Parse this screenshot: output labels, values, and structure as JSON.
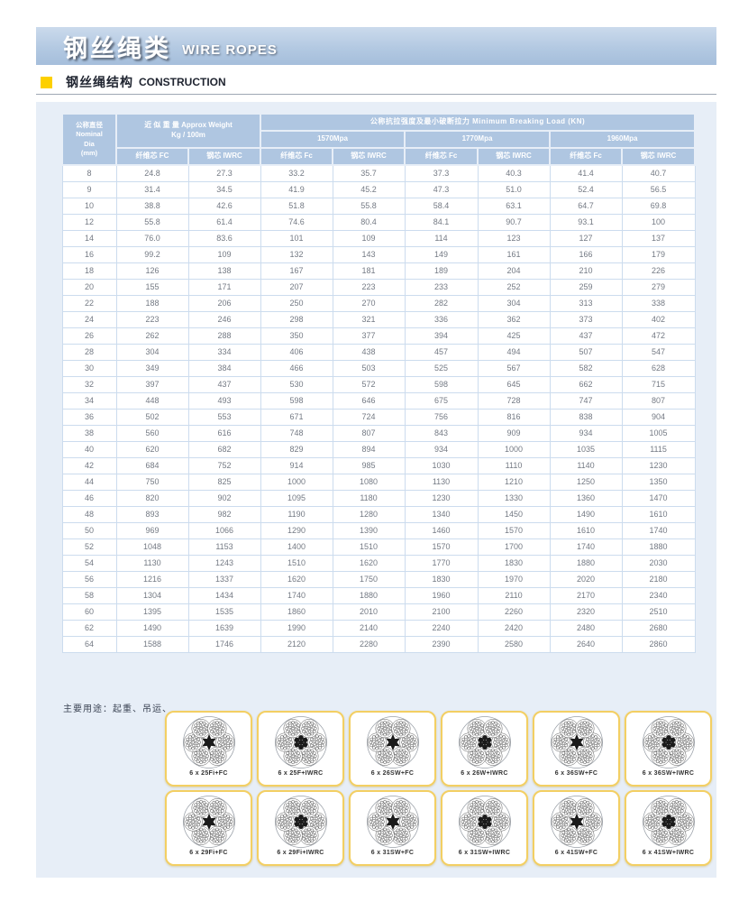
{
  "banner": {
    "title_zh": "钢丝绳类",
    "title_en": "WIRE ROPES"
  },
  "section": {
    "title_zh": "钢丝绳结构",
    "title_en": "CONSTRUCTION"
  },
  "note": "主要用途：起重、吊运、",
  "table": {
    "dia_header": [
      "公称直径",
      "Nominal",
      "Dia",
      "(mm)"
    ],
    "weight_header": [
      "近 似 重 量 Approx Weight",
      "Kg / 100m"
    ],
    "weight_subs": [
      "纤维芯 FC",
      "钢芯 IWRC"
    ],
    "breaking_header": "公称抗拉强度及最小破断拉力 Minimum Breaking Load (KN)",
    "grades": [
      "1570Mpa",
      "1770Mpa",
      "1960Mpa"
    ],
    "grade_subs": [
      "纤维芯 Fc",
      "钢芯 IWRC"
    ],
    "rows": [
      [
        "8",
        "24.8",
        "27.3",
        "33.2",
        "35.7",
        "37.3",
        "40.3",
        "41.4",
        "40.7"
      ],
      [
        "9",
        "31.4",
        "34.5",
        "41.9",
        "45.2",
        "47.3",
        "51.0",
        "52.4",
        "56.5"
      ],
      [
        "10",
        "38.8",
        "42.6",
        "51.8",
        "55.8",
        "58.4",
        "63.1",
        "64.7",
        "69.8"
      ],
      [
        "12",
        "55.8",
        "61.4",
        "74.6",
        "80.4",
        "84.1",
        "90.7",
        "93.1",
        "100"
      ],
      [
        "14",
        "76.0",
        "83.6",
        "101",
        "109",
        "114",
        "123",
        "127",
        "137"
      ],
      [
        "16",
        "99.2",
        "109",
        "132",
        "143",
        "149",
        "161",
        "166",
        "179"
      ],
      [
        "18",
        "126",
        "138",
        "167",
        "181",
        "189",
        "204",
        "210",
        "226"
      ],
      [
        "20",
        "155",
        "171",
        "207",
        "223",
        "233",
        "252",
        "259",
        "279"
      ],
      [
        "22",
        "188",
        "206",
        "250",
        "270",
        "282",
        "304",
        "313",
        "338"
      ],
      [
        "24",
        "223",
        "246",
        "298",
        "321",
        "336",
        "362",
        "373",
        "402"
      ],
      [
        "26",
        "262",
        "288",
        "350",
        "377",
        "394",
        "425",
        "437",
        "472"
      ],
      [
        "28",
        "304",
        "334",
        "406",
        "438",
        "457",
        "494",
        "507",
        "547"
      ],
      [
        "30",
        "349",
        "384",
        "466",
        "503",
        "525",
        "567",
        "582",
        "628"
      ],
      [
        "32",
        "397",
        "437",
        "530",
        "572",
        "598",
        "645",
        "662",
        "715"
      ],
      [
        "34",
        "448",
        "493",
        "598",
        "646",
        "675",
        "728",
        "747",
        "807"
      ],
      [
        "36",
        "502",
        "553",
        "671",
        "724",
        "756",
        "816",
        "838",
        "904"
      ],
      [
        "38",
        "560",
        "616",
        "748",
        "807",
        "843",
        "909",
        "934",
        "1005"
      ],
      [
        "40",
        "620",
        "682",
        "829",
        "894",
        "934",
        "1000",
        "1035",
        "1115"
      ],
      [
        "42",
        "684",
        "752",
        "914",
        "985",
        "1030",
        "1110",
        "1140",
        "1230"
      ],
      [
        "44",
        "750",
        "825",
        "1000",
        "1080",
        "1130",
        "1210",
        "1250",
        "1350"
      ],
      [
        "46",
        "820",
        "902",
        "1095",
        "1180",
        "1230",
        "1330",
        "1360",
        "1470"
      ],
      [
        "48",
        "893",
        "982",
        "1190",
        "1280",
        "1340",
        "1450",
        "1490",
        "1610"
      ],
      [
        "50",
        "969",
        "1066",
        "1290",
        "1390",
        "1460",
        "1570",
        "1610",
        "1740"
      ],
      [
        "52",
        "1048",
        "1153",
        "1400",
        "1510",
        "1570",
        "1700",
        "1740",
        "1880"
      ],
      [
        "54",
        "1130",
        "1243",
        "1510",
        "1620",
        "1770",
        "1830",
        "1880",
        "2030"
      ],
      [
        "56",
        "1216",
        "1337",
        "1620",
        "1750",
        "1830",
        "1970",
        "2020",
        "2180"
      ],
      [
        "58",
        "1304",
        "1434",
        "1740",
        "1880",
        "1960",
        "2110",
        "2170",
        "2340"
      ],
      [
        "60",
        "1395",
        "1535",
        "1860",
        "2010",
        "2100",
        "2260",
        "2320",
        "2510"
      ],
      [
        "62",
        "1490",
        "1639",
        "1990",
        "2140",
        "2240",
        "2420",
        "2480",
        "2680"
      ],
      [
        "64",
        "1588",
        "1746",
        "2120",
        "2280",
        "2390",
        "2580",
        "2640",
        "2860"
      ]
    ]
  },
  "ropes": {
    "row1": [
      "6 x 25Fi+FC",
      "6 x 25F+IWRC",
      "6 x 26SW+FC",
      "6 x 26W+IWRC",
      "6 x 36SW+FC",
      "6 x 36SW+IWRC"
    ],
    "row2": [
      "6 x 29Fi+FC",
      "6 x 29Fi+IWRC",
      "6 x 31SW+FC",
      "6 x 31SW+IWRC",
      "6 x 41SW+FC",
      "6 x 41SW+IWRC"
    ]
  },
  "colors": {
    "accent_yellow": "#fdd000",
    "header_blue": "#afc6e1",
    "panel_blue": "#e7eef7",
    "card_border": "#f3cf63"
  }
}
